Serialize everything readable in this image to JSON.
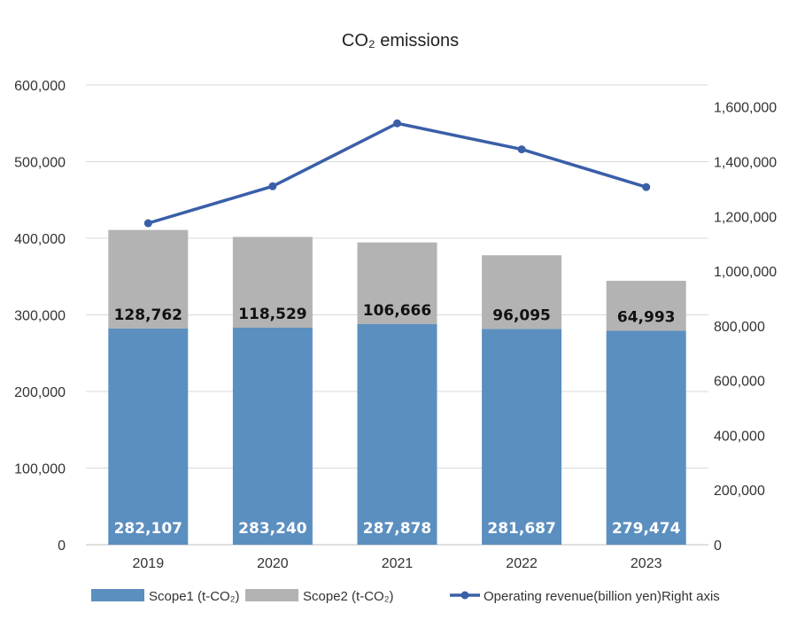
{
  "chart_data": {
    "type": "bar",
    "title": "CO₂ emissions",
    "categories": [
      "2019",
      "2020",
      "2021",
      "2022",
      "2023"
    ],
    "stacked": true,
    "series": [
      {
        "name": "Scope1 (t-CO₂)",
        "type": "bar",
        "axis": "left",
        "color": "#5b8fc0",
        "label_color": "#ffffff",
        "values": [
          282107,
          283240,
          287878,
          281687,
          279474
        ],
        "labels": [
          "282,107",
          "283,240",
          "287,878",
          "281,687",
          "279,474"
        ]
      },
      {
        "name": "Scope2 (t-CO₂)",
        "type": "bar",
        "axis": "left",
        "color": "#b3b3b3",
        "label_color": "#111111",
        "values": [
          128762,
          118529,
          106666,
          96095,
          64993
        ],
        "labels": [
          "128,762",
          "118,529",
          "106,666",
          "96,095",
          "64,993"
        ]
      },
      {
        "name": "Operating revenue(billion yen)Right axis",
        "type": "line",
        "axis": "right",
        "color": "#3a5fa8",
        "values": [
          1175000,
          1310000,
          1540000,
          1445000,
          1307000
        ]
      }
    ],
    "y_left": {
      "ylim": [
        0,
        600000
      ],
      "ticks": [
        0,
        100000,
        200000,
        300000,
        400000,
        500000,
        600000
      ],
      "tick_labels": [
        "0",
        "100,000",
        "200,000",
        "300,000",
        "400,000",
        "500,000",
        "600,000"
      ]
    },
    "y_right": {
      "ylim": [
        0,
        1680000
      ],
      "ticks": [
        0,
        200000,
        400000,
        600000,
        800000,
        1000000,
        1200000,
        1400000,
        1600000
      ],
      "tick_labels": [
        "0",
        "200,000",
        "400,000",
        "600,000",
        "800,000",
        "1,000,000",
        "1,200,000",
        "1,400,000",
        "1,600,000"
      ]
    },
    "grid": true,
    "legend": "bottom"
  }
}
